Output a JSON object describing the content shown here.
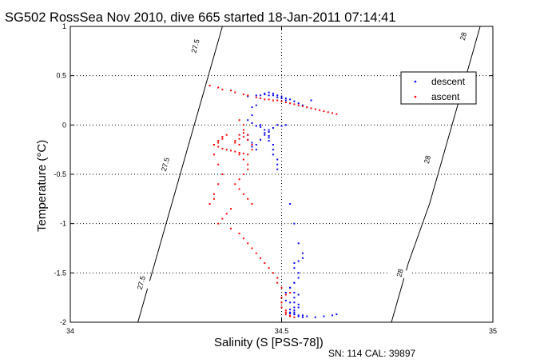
{
  "chart_data": {
    "type": "scatter",
    "title": "SG502 RossSea Nov 2010, dive 665 started 18-Jan-2011 07:14:41",
    "xlabel": "Salinity (S [PSS-78])",
    "ylabel": "Temperature (°C)",
    "xlim": [
      34,
      35
    ],
    "ylim": [
      -2,
      1
    ],
    "xticks": [
      34,
      34.5,
      35
    ],
    "xtick_labels": [
      "34",
      "34.5",
      "35"
    ],
    "yticks": [
      -2,
      -1.5,
      -1,
      -0.5,
      0,
      0.5,
      1
    ],
    "ytick_labels": [
      "-2",
      "-1.5",
      "-1",
      "-0.5",
      "0",
      "0.5",
      "1"
    ],
    "grid": true,
    "legend_position": "top-right",
    "footnote": "SN: 114  CAL: 39897",
    "colors": {
      "descent": "#0000ff",
      "ascent": "#ff0000",
      "contour": "#000000"
    },
    "contours": [
      {
        "level": "27.5",
        "x": [
          34.16,
          34.2,
          34.24,
          34.28,
          34.32,
          34.36
        ],
        "y": [
          -2,
          -1.4,
          -0.8,
          -0.2,
          0.4,
          1.0
        ],
        "labels": [
          {
            "text": "27.5",
            "x": 34.168,
            "y": -1.6
          },
          {
            "text": "27.5",
            "x": 34.225,
            "y": -0.4
          },
          {
            "text": "27.5",
            "x": 34.296,
            "y": 0.8
          }
        ]
      },
      {
        "level": "28",
        "x": [
          34.76,
          34.8,
          34.85,
          34.89,
          34.93,
          34.97
        ],
        "y": [
          -2,
          -1.4,
          -0.8,
          -0.2,
          0.4,
          1.0
        ],
        "labels": [
          {
            "text": "28",
            "x": 34.78,
            "y": -1.5
          },
          {
            "text": "28",
            "x": 34.845,
            "y": -0.35
          },
          {
            "text": "28",
            "x": 34.93,
            "y": 0.9
          }
        ]
      }
    ],
    "series": [
      {
        "name": "descent",
        "color": "#0000ff",
        "x": [
          34.42,
          34.44,
          34.46,
          34.47,
          34.48,
          34.49,
          34.5,
          34.51,
          34.53,
          34.54,
          34.55,
          34.57,
          34.45,
          34.46,
          34.47,
          34.48,
          34.49,
          34.5,
          34.51,
          34.52,
          34.44,
          34.43,
          34.43,
          34.42,
          34.43,
          34.44,
          34.45,
          34.45,
          34.46,
          34.46,
          34.47,
          34.47,
          34.47,
          34.48,
          34.48,
          34.48,
          34.49,
          34.49,
          34.49,
          34.42,
          34.42,
          34.43,
          34.43,
          34.44,
          34.44,
          34.45,
          34.46,
          34.47,
          34.47,
          34.48,
          34.49,
          34.5,
          34.51,
          34.52,
          34.53,
          34.54,
          34.55,
          34.55,
          34.54,
          34.53,
          34.53,
          34.54,
          34.54,
          34.53,
          34.52,
          34.51,
          34.5,
          34.51,
          34.52,
          34.53,
          34.53,
          34.52,
          34.52,
          34.53,
          34.54,
          34.54,
          34.55,
          34.53,
          34.52,
          34.53,
          34.54,
          34.53,
          34.53,
          34.54,
          34.54,
          34.52,
          34.53,
          34.53,
          34.55,
          34.56,
          34.58,
          34.6,
          34.62,
          34.63
        ],
        "y": [
          0.29,
          0.3,
          0.31,
          0.3,
          0.3,
          0.28,
          0.27,
          0.25,
          0.24,
          0.22,
          0.2,
          0.25,
          0.3,
          0.32,
          0.33,
          0.32,
          0.3,
          0.29,
          0.27,
          0.26,
          0.2,
          0.18,
          0.1,
          0.05,
          0.02,
          -0.01,
          0.0,
          -0.02,
          -0.05,
          -0.08,
          -0.11,
          -0.13,
          -0.16,
          -0.2,
          -0.25,
          -0.3,
          -0.35,
          -0.4,
          -0.45,
          -0.1,
          -0.15,
          -0.18,
          -0.22,
          -0.25,
          -0.2,
          -0.15,
          -0.1,
          -0.07,
          -0.05,
          -0.03,
          0.0,
          -0.01,
          0.0,
          -0.8,
          -1.0,
          -1.2,
          -1.3,
          -1.35,
          -1.38,
          -1.4,
          -1.45,
          -1.5,
          -1.55,
          -1.6,
          -1.65,
          -1.7,
          -1.75,
          -1.78,
          -1.8,
          -1.85,
          -1.88,
          -1.9,
          -1.91,
          -1.92,
          -1.93,
          -1.94,
          -1.95,
          -1.6,
          -1.65,
          -1.7,
          -1.72,
          -1.75,
          -1.8,
          -1.82,
          -1.85,
          -1.87,
          -1.9,
          -1.92,
          -1.93,
          -1.94,
          -1.95,
          -1.94,
          -1.93,
          -1.92
        ]
      },
      {
        "name": "ascent",
        "color": "#ff0000",
        "x": [
          34.33,
          34.35,
          34.36,
          34.38,
          34.39,
          34.41,
          34.42,
          34.44,
          34.45,
          34.46,
          34.47,
          34.48,
          34.49,
          34.5,
          34.51,
          34.52,
          34.53,
          34.54,
          34.55,
          34.56,
          34.57,
          34.58,
          34.59,
          34.6,
          34.61,
          34.62,
          34.63,
          34.53,
          34.52,
          34.52,
          34.51,
          34.51,
          34.51,
          34.5,
          34.5,
          34.5,
          34.51,
          34.52,
          34.5,
          34.49,
          34.49,
          34.48,
          34.47,
          34.46,
          34.45,
          34.44,
          34.43,
          34.42,
          34.41,
          34.4,
          34.38,
          34.37,
          34.36,
          34.36,
          34.35,
          34.35,
          34.34,
          34.35,
          34.36,
          34.37,
          34.38,
          34.39,
          34.4,
          34.41,
          34.42,
          34.43,
          34.43,
          34.42,
          34.42,
          34.41,
          34.41,
          34.4,
          34.4,
          34.39,
          34.39,
          34.4,
          34.41,
          34.4,
          34.41,
          34.4,
          34.41,
          34.42,
          34.42,
          34.41,
          34.4,
          34.39,
          34.4,
          34.41,
          34.42,
          34.43,
          34.38,
          34.37,
          34.36,
          34.35,
          34.34,
          34.34,
          34.35,
          34.36,
          34.35,
          34.34,
          34.34,
          34.33
        ],
        "y": [
          0.4,
          0.38,
          0.36,
          0.35,
          0.33,
          0.31,
          0.3,
          0.28,
          0.27,
          0.26,
          0.26,
          0.25,
          0.25,
          0.24,
          0.23,
          0.22,
          0.21,
          0.2,
          0.19,
          0.18,
          0.17,
          0.16,
          0.15,
          0.14,
          0.13,
          0.12,
          0.11,
          -1.95,
          -1.94,
          -1.93,
          -1.92,
          -1.9,
          -1.88,
          -1.85,
          -1.8,
          -1.75,
          -1.72,
          -1.7,
          -1.65,
          -1.6,
          -1.55,
          -1.5,
          -1.45,
          -1.4,
          -1.35,
          -1.3,
          -1.25,
          -1.2,
          -1.15,
          -1.1,
          -1.05,
          -0.1,
          -0.12,
          -0.14,
          -0.16,
          -0.18,
          -0.2,
          -0.22,
          -0.24,
          -0.25,
          -0.26,
          -0.27,
          -0.28,
          -0.29,
          -0.3,
          -0.25,
          -0.2,
          -0.15,
          -0.1,
          -0.05,
          0.0,
          0.05,
          -0.2,
          -0.18,
          -0.16,
          -0.14,
          -0.12,
          -0.1,
          -0.08,
          -0.3,
          -0.35,
          -0.4,
          -0.45,
          -0.5,
          -0.55,
          -0.6,
          -0.65,
          -0.7,
          -0.75,
          -0.8,
          -0.85,
          -0.9,
          -0.95,
          -1.0,
          -0.2,
          -0.3,
          -0.4,
          -0.5,
          -0.6,
          -0.7,
          -0.75,
          -0.8
        ]
      }
    ]
  }
}
